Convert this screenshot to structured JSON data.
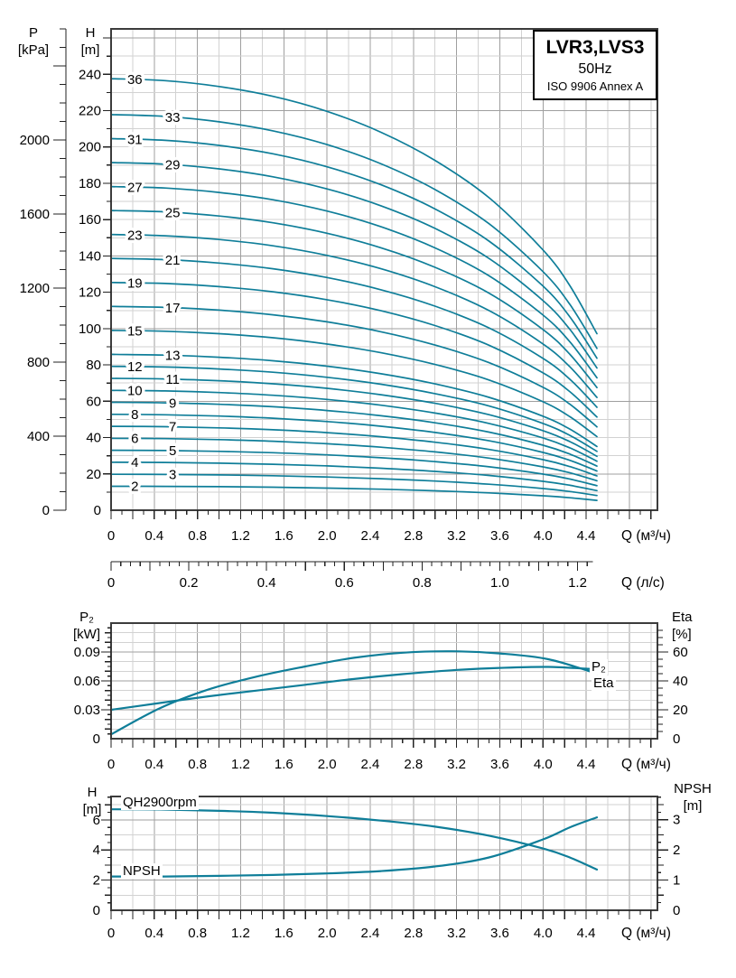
{
  "title_box": {
    "model": "LVR3,LVS3",
    "frequency": "50Hz",
    "standard": "ISO 9906 Annex A"
  },
  "axis_headers": {
    "p_line1": "P",
    "p_line2": "[kPa]",
    "h_line1": "H",
    "h_line2": "[m]",
    "p2_line1": "P₂",
    "p2_line2": "[kW]",
    "eta_line1": "Eta",
    "eta_line2": "[%]",
    "h2_line1": "H",
    "h2_line2": "[m]",
    "npsh_line1": "NPSH",
    "npsh_line2": "[m]",
    "q_m3h": "Q (м³/ч)",
    "q_ls": "Q (л/с)"
  },
  "curve_labels": {
    "p2": "P₂",
    "eta": "Eta",
    "qh": "QH2900rpm",
    "npsh": "NPSH"
  },
  "colors": {
    "curve_teal": "#0f7e99",
    "grid_minor": "#d2d2d2",
    "grid_major": "#9f9f9f",
    "frame": "#3c3c3c",
    "tick": "#222222",
    "background": "#ffffff",
    "text": "#000000"
  },
  "chart_data": [
    {
      "id": "qh-multistage",
      "type": "line",
      "title": "LVR3,LVS3 50Hz ISO 9906 Annex A",
      "xlabel": "Q (м³/ч)",
      "ylabel_left_pressure": "P [kPa]",
      "ylabel_left_head": "H [m]",
      "x_ticks": [
        0,
        0.4,
        0.8,
        1.2,
        1.6,
        2.0,
        2.4,
        2.8,
        3.2,
        3.6,
        4.0,
        4.4
      ],
      "x_minor_step": 0.1,
      "x_range": [
        0,
        5.06
      ],
      "x_secondary_label": "Q (л/с)",
      "x_secondary_ticks": [
        0,
        0.2,
        0.4,
        0.6,
        0.8,
        1.0,
        1.2
      ],
      "x_secondary_range": [
        0,
        1.24
      ],
      "h_ticks": [
        0,
        20,
        40,
        60,
        80,
        100,
        120,
        140,
        160,
        180,
        200,
        220,
        240
      ],
      "h_range": [
        0,
        265
      ],
      "p_ticks": [
        0,
        400,
        800,
        1200,
        1600,
        2000
      ],
      "p_minor_step": 100,
      "p_range": [
        0,
        2600
      ],
      "grid": true,
      "q_samples": [
        0,
        0.5,
        1.0,
        1.5,
        2.0,
        2.5,
        3.0,
        3.5,
        4.0,
        4.25,
        4.5
      ],
      "head_per_stage_m": [
        6.6,
        6.57,
        6.48,
        6.33,
        6.1,
        5.78,
        5.35,
        4.78,
        3.98,
        3.43,
        2.7
      ],
      "stages": [
        {
          "n": 36,
          "label_q": 0.22
        },
        {
          "n": 33,
          "label_q": 0.57
        },
        {
          "n": 31,
          "label_q": 0.22
        },
        {
          "n": 29,
          "label_q": 0.57
        },
        {
          "n": 27,
          "label_q": 0.22
        },
        {
          "n": 25,
          "label_q": 0.57
        },
        {
          "n": 23,
          "label_q": 0.22
        },
        {
          "n": 21,
          "label_q": 0.57
        },
        {
          "n": 19,
          "label_q": 0.22
        },
        {
          "n": 17,
          "label_q": 0.57
        },
        {
          "n": 15,
          "label_q": 0.22
        },
        {
          "n": 13,
          "label_q": 0.57
        },
        {
          "n": 12,
          "label_q": 0.22
        },
        {
          "n": 11,
          "label_q": 0.57
        },
        {
          "n": 10,
          "label_q": 0.22
        },
        {
          "n": 9,
          "label_q": 0.57
        },
        {
          "n": 8,
          "label_q": 0.22
        },
        {
          "n": 7,
          "label_q": 0.57
        },
        {
          "n": 6,
          "label_q": 0.22
        },
        {
          "n": 5,
          "label_q": 0.57
        },
        {
          "n": 4,
          "label_q": 0.22
        },
        {
          "n": 3,
          "label_q": 0.57
        },
        {
          "n": 2,
          "label_q": 0.22
        }
      ]
    },
    {
      "id": "p2-eta",
      "type": "line",
      "xlabel": "Q (м³/ч)",
      "ylabel_left": "P₂ [kW]",
      "ylabel_right": "Eta [%]",
      "x_ticks": [
        0,
        0.4,
        0.8,
        1.2,
        1.6,
        2.0,
        2.4,
        2.8,
        3.2,
        3.6,
        4.0,
        4.4
      ],
      "x_minor_step": 0.1,
      "x_range": [
        0,
        5.06
      ],
      "y_left_ticks": [
        0,
        0.03,
        0.06,
        0.09
      ],
      "y_left_range": [
        0,
        0.12
      ],
      "y_right_ticks": [
        0,
        20,
        40,
        60
      ],
      "y_right_range": [
        0,
        80
      ],
      "grid": true,
      "q": [
        0,
        0.45,
        0.9,
        1.35,
        1.8,
        2.25,
        2.7,
        3.15,
        3.6,
        4.05,
        4.5
      ],
      "series": [
        {
          "name": "P₂",
          "unit": "kW",
          "axis": "left",
          "values": [
            0.03,
            0.037,
            0.044,
            0.05,
            0.056,
            0.062,
            0.067,
            0.071,
            0.0735,
            0.0745,
            0.072
          ]
        },
        {
          "name": "Eta",
          "unit": "%",
          "axis": "right",
          "values": [
            3,
            21,
            34,
            43,
            50,
            56,
            59.5,
            60.5,
            59,
            55,
            45
          ]
        }
      ]
    },
    {
      "id": "qh-npsh",
      "type": "line",
      "xlabel": "Q (м³/ч)",
      "ylabel_left": "H [m]",
      "ylabel_right": "NPSH [m]",
      "x_ticks": [
        0,
        0.4,
        0.8,
        1.2,
        1.6,
        2.0,
        2.4,
        2.8,
        3.2,
        3.6,
        4.0,
        4.4
      ],
      "x_minor_step": 0.1,
      "x_range": [
        0,
        5.06
      ],
      "y_left_ticks": [
        0,
        2,
        4,
        6
      ],
      "y_left_range": [
        0,
        7.55
      ],
      "y_right_ticks": [
        0,
        1,
        2,
        3
      ],
      "y_right_range": [
        0,
        3.77
      ],
      "grid": true,
      "q": [
        0,
        0.5,
        1.0,
        1.5,
        2.0,
        2.5,
        3.0,
        3.5,
        4.0,
        4.25,
        4.5
      ],
      "series": [
        {
          "name": "QH2900rpm",
          "unit": "m",
          "axis": "left",
          "values": [
            6.7,
            6.68,
            6.6,
            6.47,
            6.25,
            5.95,
            5.55,
            4.95,
            4.1,
            3.5,
            2.7
          ]
        },
        {
          "name": "NPSH",
          "unit": "m",
          "axis": "right",
          "values": [
            1.12,
            1.12,
            1.14,
            1.17,
            1.22,
            1.3,
            1.45,
            1.75,
            2.35,
            2.75,
            3.08
          ]
        }
      ]
    }
  ]
}
